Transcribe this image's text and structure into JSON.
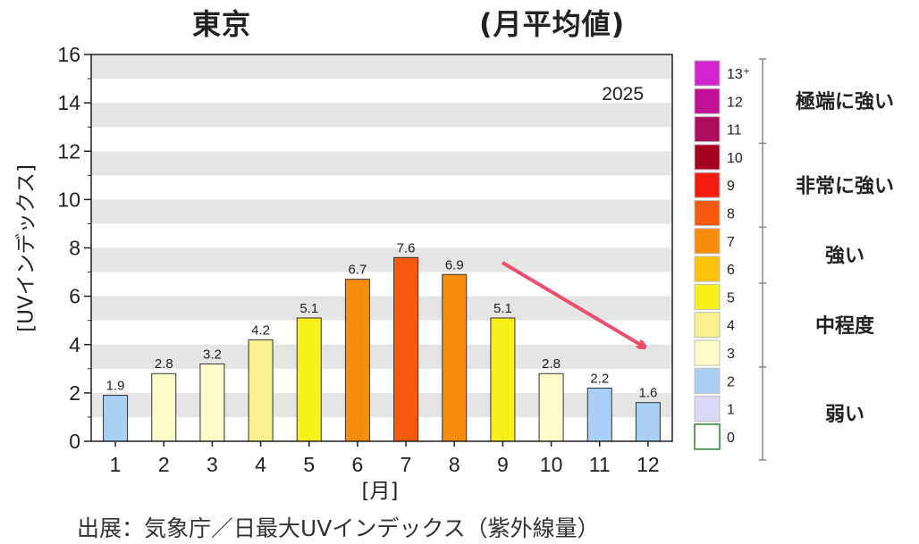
{
  "titles": {
    "left": "東京",
    "right": "(月平均値)"
  },
  "source": "出展：気象庁／日最大UVインデックス（紫外線量）",
  "chart_data": {
    "type": "bar",
    "year_label": "2025",
    "xlabel": "[月]",
    "ylabel": "[UVインデックス]",
    "ylim": [
      0,
      16
    ],
    "yticks": [
      0,
      2,
      4,
      6,
      8,
      10,
      12,
      14,
      16
    ],
    "categories": [
      "1",
      "2",
      "3",
      "4",
      "5",
      "6",
      "7",
      "8",
      "9",
      "10",
      "11",
      "12"
    ],
    "values": [
      1.9,
      2.8,
      3.2,
      4.2,
      5.1,
      6.7,
      7.6,
      6.9,
      5.1,
      2.8,
      2.2,
      1.6
    ],
    "value_labels": [
      "1.9",
      "2.8",
      "3.2",
      "4.2",
      "5.1",
      "6.7",
      "7.6",
      "6.9",
      "5.1",
      "2.8",
      "2.2",
      "1.6"
    ],
    "annotation": "arrow pointing down-right after July peak",
    "colors": {
      "0": "#ffffff",
      "1": "#d9d9f5",
      "2": "#a9cff2",
      "3": "#fdfcc8",
      "4": "#f6f08e",
      "5": "#f9ef1a",
      "6": "#fbc30b",
      "7": "#f88d0a",
      "8": "#f75a0d",
      "9": "#f41c0f",
      "10": "#a50021",
      "11": "#ac0e5d",
      "12": "#c31097",
      "13": "#d325cf"
    },
    "legend": {
      "levels": [
        {
          "label": "13⁺",
          "key": "13"
        },
        {
          "label": "12",
          "key": "12"
        },
        {
          "label": "11",
          "key": "11"
        },
        {
          "label": "10",
          "key": "10"
        },
        {
          "label": "9",
          "key": "9"
        },
        {
          "label": "8",
          "key": "8"
        },
        {
          "label": "7",
          "key": "7"
        },
        {
          "label": "6",
          "key": "6"
        },
        {
          "label": "5",
          "key": "5"
        },
        {
          "label": "4",
          "key": "4"
        },
        {
          "label": "3",
          "key": "3"
        },
        {
          "label": "2",
          "key": "2"
        },
        {
          "label": "1",
          "key": "1"
        },
        {
          "label": "0",
          "key": "0"
        }
      ],
      "categories": [
        {
          "label": "極端に強い",
          "from": "11",
          "to": "13"
        },
        {
          "label": "非常に強い",
          "from": "8",
          "to": "10"
        },
        {
          "label": "強い",
          "from": "6",
          "to": "7"
        },
        {
          "label": "中程度",
          "from": "3",
          "to": "5"
        },
        {
          "label": "弱い",
          "from": "0",
          "to": "2"
        }
      ]
    }
  }
}
